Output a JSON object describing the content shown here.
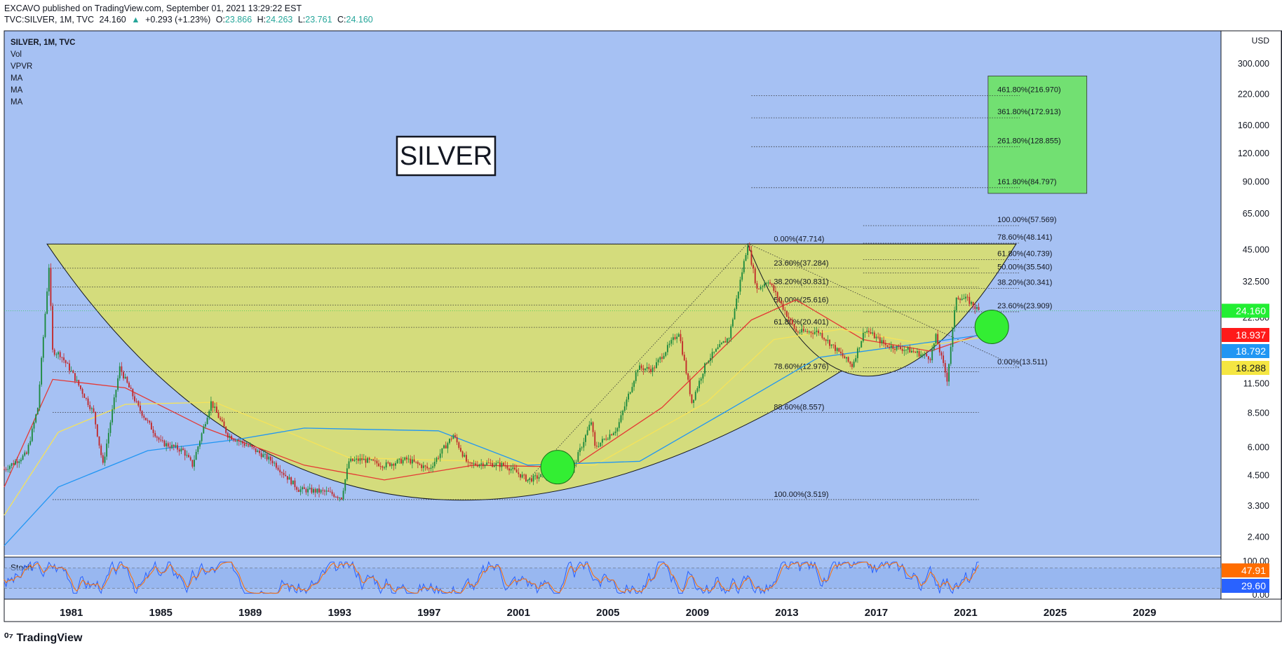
{
  "header": {
    "publisher": "EXCAVO published on TradingView.com, September 01, 2021 13:29:22 EST",
    "symbol": "TVC:SILVER, 1M, TVC",
    "last": "24.160",
    "change_icon": "triangle-up-icon",
    "change": "+0.293 (+1.23%)",
    "o_label": "O:",
    "open": "23.866",
    "h_label": "H:",
    "high": "24.263",
    "l_label": "L:",
    "low": "23.761",
    "c_label": "C:",
    "close": "24.160"
  },
  "indicators": [
    "SILVER, 1M, TVC",
    "Vol",
    "VPVR",
    "MA",
    "MA",
    "MA"
  ],
  "title_box": "SILVER",
  "footer": {
    "logo_text": "TradingView",
    "logo_icon": "tradingview-logo-icon"
  },
  "colors": {
    "background": "#a6c1f3",
    "cup": "#d4dc7c",
    "target_box": "#72e072",
    "up_candle": "#1d8a3e",
    "down_candle": "#c2292b",
    "ma_red": "#e53935",
    "ma_yellow": "#f5e35a",
    "ma_blue": "#2196f3",
    "stoch_k": "#2962ff",
    "stoch_d": "#ff6d00"
  },
  "chart_data": {
    "type": "candlestick",
    "ylabel": "USD",
    "y_scale": "log",
    "ylim": [
      2.0,
      420
    ],
    "xlim": [
      "1978-01",
      "2032-06"
    ],
    "y_ticks": [
      "300.000",
      "220.000",
      "160.000",
      "120.000",
      "90.000",
      "65.000",
      "45.000",
      "32.500",
      "22.500",
      "11.500",
      "8.500",
      "6.000",
      "4.500",
      "3.300",
      "2.400"
    ],
    "x_ticks": [
      "1981",
      "1985",
      "1989",
      "1993",
      "1997",
      "2001",
      "2005",
      "2009",
      "2013",
      "2017",
      "2021",
      "2025",
      "2029"
    ],
    "price_labels": [
      {
        "value": "24.160",
        "color": "#22ee33"
      },
      {
        "value": "18.937",
        "color": "#ff1a1a"
      },
      {
        "value": "18.792",
        "color": "#2196f3"
      },
      {
        "value": "18.288",
        "color": "#f5e642"
      }
    ],
    "price_path": [
      [
        "1978-01",
        4.8
      ],
      [
        "1979-01",
        5.6
      ],
      [
        "1979-07",
        9.0
      ],
      [
        "1980-01",
        38.0
      ],
      [
        "1980-03",
        16.0
      ],
      [
        "1980-07",
        15.5
      ],
      [
        "1981-01",
        13.0
      ],
      [
        "1982-01",
        8.5
      ],
      [
        "1982-06",
        5.0
      ],
      [
        "1983-03",
        13.5
      ],
      [
        "1984-01",
        9.0
      ],
      [
        "1985-01",
        6.3
      ],
      [
        "1986-01",
        5.8
      ],
      [
        "1986-06",
        5.0
      ],
      [
        "1987-04",
        9.5
      ],
      [
        "1988-01",
        6.8
      ],
      [
        "1989-01",
        6.0
      ],
      [
        "1990-01",
        5.2
      ],
      [
        "1991-03",
        3.9
      ],
      [
        "1992-06",
        3.8
      ],
      [
        "1993-02",
        3.6
      ],
      [
        "1993-06",
        5.2
      ],
      [
        "1994-01",
        5.3
      ],
      [
        "1995-01",
        5.0
      ],
      [
        "1996-01",
        5.3
      ],
      [
        "1997-01",
        4.8
      ],
      [
        "1998-02",
        6.8
      ],
      [
        "1998-10",
        5.0
      ],
      [
        "1999-06",
        5.1
      ],
      [
        "2000-06",
        5.0
      ],
      [
        "2001-06",
        4.3
      ],
      [
        "2002-06",
        4.6
      ],
      [
        "2003-06",
        4.8
      ],
      [
        "2004-04",
        7.8
      ],
      [
        "2004-06",
        6.0
      ],
      [
        "2005-06",
        7.3
      ],
      [
        "2006-05",
        13.5
      ],
      [
        "2007-01",
        13.3
      ],
      [
        "2008-03",
        19.5
      ],
      [
        "2008-10",
        9.5
      ],
      [
        "2009-06",
        14.5
      ],
      [
        "2010-06",
        18.5
      ],
      [
        "2011-04",
        48.0
      ],
      [
        "2011-09",
        30.0
      ],
      [
        "2012-03",
        33.0
      ],
      [
        "2013-06",
        19.5
      ],
      [
        "2014-06",
        19.5
      ],
      [
        "2015-12",
        13.8
      ],
      [
        "2016-07",
        20.0
      ],
      [
        "2017-06",
        17.0
      ],
      [
        "2018-06",
        16.2
      ],
      [
        "2019-06",
        15.0
      ],
      [
        "2019-09",
        18.5
      ],
      [
        "2020-03",
        12.0
      ],
      [
        "2020-08",
        28.0
      ],
      [
        "2021-02",
        27.0
      ],
      [
        "2021-08",
        24.16
      ]
    ],
    "moving_averages": [
      {
        "color": "#e53935",
        "points": [
          [
            "1978-01",
            4.0
          ],
          [
            "1980-03",
            12.0
          ],
          [
            "1983-06",
            11.0
          ],
          [
            "1987-01",
            7.3
          ],
          [
            "1991-06",
            5.0
          ],
          [
            "1995-01",
            4.3
          ],
          [
            "1999-01",
            5.0
          ],
          [
            "2003-06",
            4.9
          ],
          [
            "2007-06",
            9.0
          ],
          [
            "2011-06",
            22.0
          ],
          [
            "2013-06",
            27.0
          ],
          [
            "2016-06",
            18.0
          ],
          [
            "2019-06",
            16.0
          ],
          [
            "2021-08",
            18.937
          ]
        ]
      },
      {
        "color": "#f5e35a",
        "points": [
          [
            "1978-01",
            3.0
          ],
          [
            "1980-06",
            7.0
          ],
          [
            "1983-06",
            9.3
          ],
          [
            "1987-06",
            9.5
          ],
          [
            "1990-06",
            7.2
          ],
          [
            "1993-06",
            5.4
          ],
          [
            "1999-06",
            5.2
          ],
          [
            "2004-06",
            5.0
          ],
          [
            "2009-06",
            9.5
          ],
          [
            "2012-06",
            18.0
          ],
          [
            "2015-06",
            20.0
          ],
          [
            "2019-06",
            17.0
          ],
          [
            "2021-08",
            18.288
          ]
        ]
      },
      {
        "color": "#2196f3",
        "points": [
          [
            "1978-01",
            2.2
          ],
          [
            "1980-06",
            4.0
          ],
          [
            "1984-06",
            5.8
          ],
          [
            "1988-06",
            6.5
          ],
          [
            "1991-06",
            7.3
          ],
          [
            "1997-06",
            7.1
          ],
          [
            "2001-06",
            5.0
          ],
          [
            "2006-06",
            5.2
          ],
          [
            "2010-06",
            8.8
          ],
          [
            "2014-06",
            15.0
          ],
          [
            "2018-06",
            17.0
          ],
          [
            "2021-08",
            18.792
          ]
        ]
      }
    ],
    "cup_patterns": [
      {
        "rim_left": [
          "1979-12",
          47.7
        ],
        "bottom": [
          "1995-06",
          3.5
        ],
        "rim_right": [
          "2023-04",
          47.7
        ],
        "color": "#d4dc7c"
      },
      {
        "rim_left": [
          "2011-04",
          47.7
        ],
        "bottom": [
          "2016-01",
          12.4
        ],
        "rim_right": [
          "2023-04",
          47.7
        ],
        "color": "#d4dc7c"
      }
    ],
    "fib_levels_left": [
      {
        "label": "0.00%(47.714)",
        "value": 47.714
      },
      {
        "label": "23.60%(37.284)",
        "value": 37.284
      },
      {
        "label": "38.20%(30.831)",
        "value": 30.831
      },
      {
        "label": "50.00%(25.616)",
        "value": 25.616
      },
      {
        "label": "61.80%(20.401)",
        "value": 20.401
      },
      {
        "label": "78.60%(12.976)",
        "value": 12.976
      },
      {
        "label": "88.60%(8.557)",
        "value": 8.557
      },
      {
        "label": "100.00%(3.519)",
        "value": 3.519
      }
    ],
    "fib_levels_right": [
      {
        "label": "461.80%(216.970)",
        "value": 216.97
      },
      {
        "label": "361.80%(172.913)",
        "value": 172.913
      },
      {
        "label": "261.80%(128.855)",
        "value": 128.855
      },
      {
        "label": "161.80%(84.797)",
        "value": 84.797
      },
      {
        "label": "100.00%(57.569)",
        "value": 57.569
      },
      {
        "label": "78.60%(48.141)",
        "value": 48.141
      },
      {
        "label": "61.80%(40.739)",
        "value": 40.739
      },
      {
        "label": "50.00%(35.540)",
        "value": 35.54
      },
      {
        "label": "38.20%(30.341)",
        "value": 30.341
      },
      {
        "label": "23.60%(23.909)",
        "value": 23.909
      },
      {
        "label": "0.00%(13.511)",
        "value": 13.511
      }
    ],
    "target_zone": {
      "from_date": "2022-01",
      "to_date": "2026-06",
      "low": 80,
      "high": 265
    },
    "highlight_circles": [
      {
        "date": "2002-10",
        "value": 4.9,
        "color": "#33ee33"
      },
      {
        "date": "2022-03",
        "value": 20.5,
        "color": "#33ee33"
      }
    ],
    "stoch": {
      "label": "Stoch",
      "ylim": [
        0,
        100
      ],
      "ticks": [
        "100.00",
        "0.00"
      ],
      "k_label": {
        "value": "29.60",
        "color": "#2962ff"
      },
      "d_label": {
        "value": "47.91",
        "color": "#ff6d00"
      }
    }
  }
}
